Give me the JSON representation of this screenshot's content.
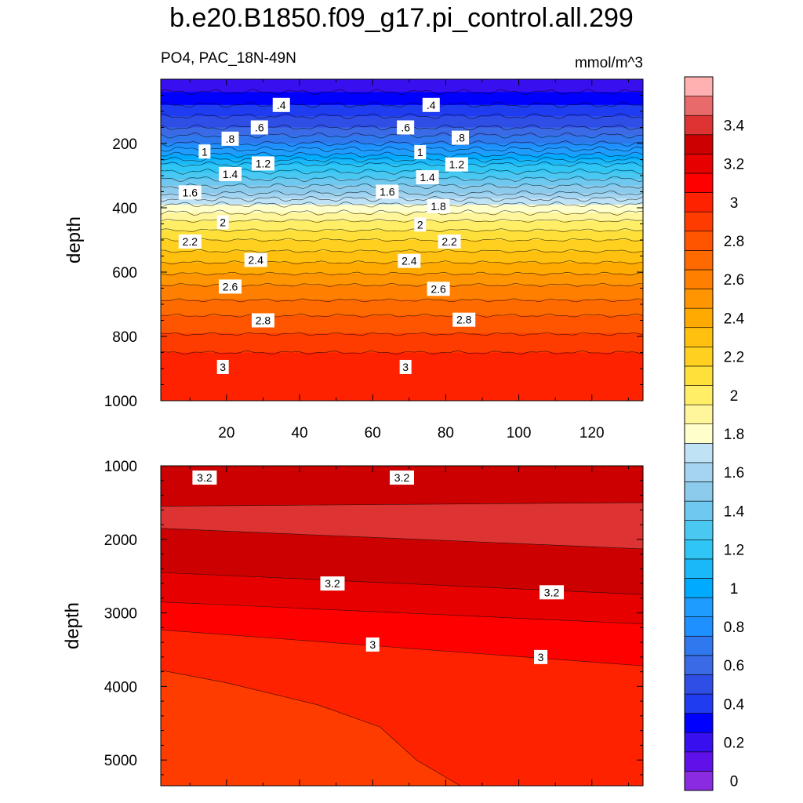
{
  "title": "b.e20.B1850.f09_g17.pi_control.all.299",
  "subtitle_left": "PO4, PAC_18N-49N",
  "subtitle_right": "mmol/m^3",
  "chart_data": [
    {
      "type": "contour",
      "panel": "upper",
      "variable": "PO4",
      "xlabel": "",
      "ylabel": "depth",
      "xlim": [
        2,
        134
      ],
      "ylim": [
        1000,
        0
      ],
      "x_ticks": [
        20,
        40,
        60,
        80,
        100,
        120
      ],
      "y_ticks": [
        200,
        400,
        600,
        800,
        1000
      ],
      "grid": false,
      "profile": [
        {
          "depth": 0,
          "value": 0.2
        },
        {
          "depth": 80,
          "value": 0.4
        },
        {
          "depth": 150,
          "value": 0.6
        },
        {
          "depth": 200,
          "value": 0.8
        },
        {
          "depth": 235,
          "value": 1.0
        },
        {
          "depth": 265,
          "value": 1.2
        },
        {
          "depth": 310,
          "value": 1.4
        },
        {
          "depth": 355,
          "value": 1.6
        },
        {
          "depth": 390,
          "value": 1.8
        },
        {
          "depth": 440,
          "value": 2.0
        },
        {
          "depth": 500,
          "value": 2.2
        },
        {
          "depth": 570,
          "value": 2.4
        },
        {
          "depth": 640,
          "value": 2.6
        },
        {
          "depth": 735,
          "value": 2.8
        },
        {
          "depth": 850,
          "value": 3.0
        },
        {
          "depth": 1000,
          "value": 3.1
        }
      ],
      "contour_labels": [
        {
          "x": 35,
          "depth": 80,
          "text": ".4"
        },
        {
          "x": 76,
          "depth": 80,
          "text": ".4"
        },
        {
          "x": 29,
          "depth": 150,
          "text": ".6"
        },
        {
          "x": 69,
          "depth": 150,
          "text": ".6"
        },
        {
          "x": 21,
          "depth": 185,
          "text": ".8"
        },
        {
          "x": 84,
          "depth": 182,
          "text": ".8"
        },
        {
          "x": 14,
          "depth": 225,
          "text": "1"
        },
        {
          "x": 73,
          "depth": 227,
          "text": "1"
        },
        {
          "x": 30,
          "depth": 262,
          "text": "1.2"
        },
        {
          "x": 83,
          "depth": 265,
          "text": "1.2"
        },
        {
          "x": 21,
          "depth": 295,
          "text": "1.4"
        },
        {
          "x": 75,
          "depth": 305,
          "text": "1.4"
        },
        {
          "x": 10,
          "depth": 352,
          "text": "1.6"
        },
        {
          "x": 64,
          "depth": 350,
          "text": "1.6"
        },
        {
          "x": 78,
          "depth": 395,
          "text": "1.8"
        },
        {
          "x": 19,
          "depth": 445,
          "text": "2"
        },
        {
          "x": 73,
          "depth": 452,
          "text": "2"
        },
        {
          "x": 10,
          "depth": 505,
          "text": "2.2"
        },
        {
          "x": 81,
          "depth": 505,
          "text": "2.2"
        },
        {
          "x": 28,
          "depth": 562,
          "text": "2.4"
        },
        {
          "x": 70,
          "depth": 565,
          "text": "2.4"
        },
        {
          "x": 21,
          "depth": 645,
          "text": "2.6"
        },
        {
          "x": 78,
          "depth": 652,
          "text": "2.6"
        },
        {
          "x": 30,
          "depth": 750,
          "text": "2.8"
        },
        {
          "x": 85,
          "depth": 748,
          "text": "2.8"
        },
        {
          "x": 19,
          "depth": 895,
          "text": "3"
        },
        {
          "x": 69,
          "depth": 895,
          "text": "3"
        }
      ]
    },
    {
      "type": "contour",
      "panel": "lower",
      "variable": "PO4",
      "xlabel": "",
      "ylabel": "depth",
      "xlim": [
        2,
        134
      ],
      "ylim": [
        5350,
        1000
      ],
      "y_ticks": [
        1000,
        2000,
        3000,
        4000,
        5000
      ],
      "grid": false,
      "bands": [
        {
          "value": 3.3,
          "top_depth": [
            1000,
            1000
          ],
          "bottom_depth": [
            1550,
            1500
          ]
        },
        {
          "value": 3.4,
          "top_depth": [
            1550,
            1500
          ],
          "bottom_depth": [
            1850,
            2130
          ]
        },
        {
          "value": 3.3,
          "top_depth": [
            1850,
            2130
          ],
          "bottom_depth": [
            2450,
            2750
          ]
        },
        {
          "value": 3.2,
          "top_depth": [
            2450,
            2750
          ],
          "bottom_depth": [
            2850,
            3150
          ]
        },
        {
          "value": 3.1,
          "top_depth": [
            2850,
            3150
          ],
          "bottom_depth": [
            3230,
            3720
          ]
        },
        {
          "value": 3.0,
          "top_depth": [
            3230,
            3720
          ],
          "bottom_depth": [
            5350,
            5350
          ]
        }
      ],
      "region_2_9": [
        {
          "x": 2,
          "depth": 3780
        },
        {
          "x": 20,
          "depth": 3950
        },
        {
          "x": 45,
          "depth": 4250
        },
        {
          "x": 62,
          "depth": 4550
        },
        {
          "x": 72,
          "depth": 5000
        },
        {
          "x": 84,
          "depth": 5350
        },
        {
          "x": 2,
          "depth": 5350
        }
      ],
      "contour_labels": [
        {
          "x": 14,
          "depth": 1160,
          "text": "3.2"
        },
        {
          "x": 68,
          "depth": 1160,
          "text": "3.2"
        },
        {
          "x": 49,
          "depth": 2600,
          "text": "3.2"
        },
        {
          "x": 109,
          "depth": 2720,
          "text": "3.2"
        },
        {
          "x": 60,
          "depth": 3430,
          "text": "3"
        },
        {
          "x": 106,
          "depth": 3600,
          "text": "3"
        }
      ]
    }
  ],
  "colorbar": {
    "levels": [
      0,
      0.1,
      0.2,
      0.3,
      0.4,
      0.5,
      0.6,
      0.7,
      0.8,
      0.9,
      1,
      1.1,
      1.2,
      1.3,
      1.4,
      1.5,
      1.6,
      1.7,
      1.8,
      1.9,
      2,
      2.1,
      2.2,
      2.3,
      2.4,
      2.5,
      2.6,
      2.7,
      2.8,
      2.9,
      3,
      3.1,
      3.2,
      3.3,
      3.4,
      3.5,
      3.6
    ],
    "colors": [
      "#8a2be2",
      "#6010e8",
      "#3810f0",
      "#0000ff",
      "#1f3cf0",
      "#2f4ee6",
      "#3a6ae6",
      "#2f78ee",
      "#1e90ff",
      "#1e9cff",
      "#00aaff",
      "#1ab8f8",
      "#2fc6f5",
      "#4ac8f2",
      "#6ec8ef",
      "#8ccbec",
      "#a4d4f0",
      "#bfe2f5",
      "#ffffcc",
      "#fff59a",
      "#ffee66",
      "#ffe03a",
      "#ffd020",
      "#ffc010",
      "#ffaa00",
      "#ff9500",
      "#ff8000",
      "#ff6a00",
      "#ff5500",
      "#ff3c00",
      "#ff2200",
      "#ff0000",
      "#e60000",
      "#cc0000",
      "#dd3333",
      "#e86a6a",
      "#ffb0b0"
    ],
    "tick_labels": [
      "0",
      "0.2",
      "0.4",
      "0.6",
      "0.8",
      "1",
      "1.2",
      "1.4",
      "1.6",
      "1.8",
      "2",
      "2.2",
      "2.4",
      "2.6",
      "2.8",
      "3",
      "3.2",
      "3.4"
    ]
  }
}
